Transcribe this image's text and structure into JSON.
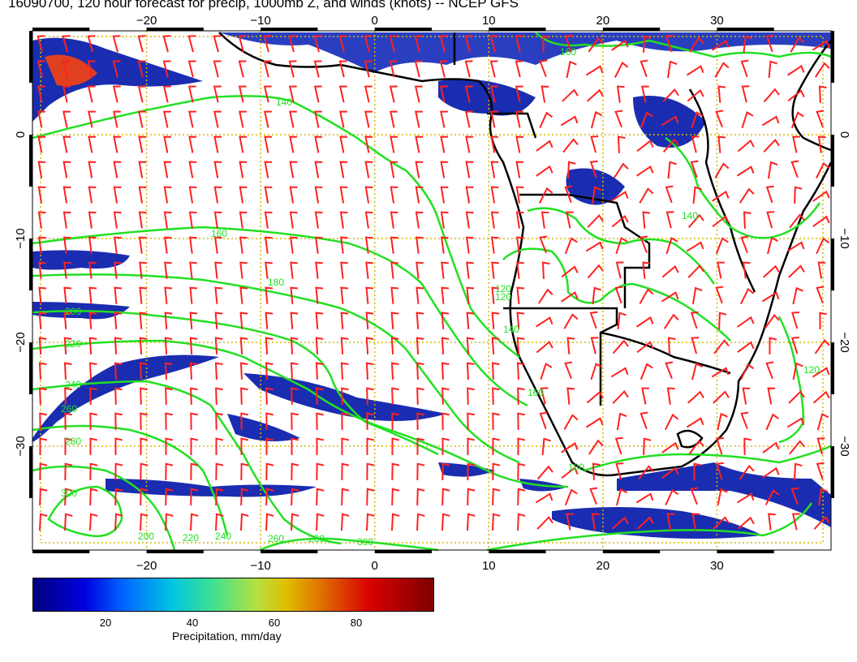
{
  "title": "16090700, 120 hour forecast for precip, 1000mb Z, and winds (knots) -- NCEP GFS",
  "x_axis_ticks": [
    "−20",
    "−10",
    "0",
    "10",
    "20",
    "30"
  ],
  "y_axis_ticks": [
    "0",
    "−10",
    "−20",
    "−30"
  ],
  "contour_labels": [
    "140",
    "160",
    "180",
    "200",
    "220",
    "240",
    "260",
    "280",
    "300",
    "120",
    "140",
    "160",
    "180",
    "200",
    "220",
    "240",
    "260",
    "280",
    "300",
    "120",
    "140",
    "160",
    "120"
  ],
  "colorbar": {
    "ticks": [
      "20",
      "40",
      "60",
      "80"
    ],
    "label": "Precipitation, mm/day"
  },
  "colors": {
    "contour": "#22e022",
    "barbs": "#ff2020",
    "coast": "#000000",
    "grid": "#d4b800",
    "precip_low": "#1020a0"
  },
  "map_extent": {
    "lon": [
      -30,
      40
    ],
    "lat": [
      -40,
      10
    ]
  }
}
